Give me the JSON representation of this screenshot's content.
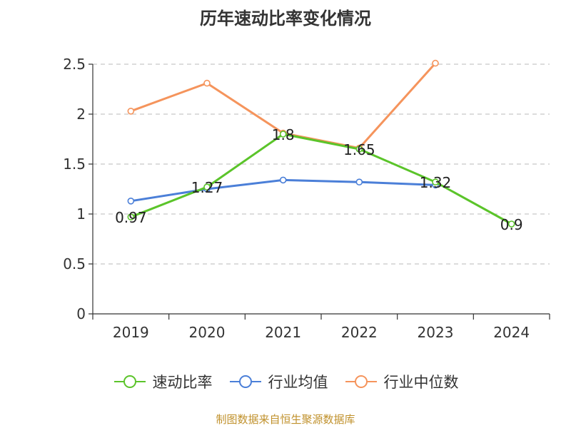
{
  "chart_data": {
    "type": "line",
    "title": "历年速动比率变化情况",
    "categories": [
      "2019",
      "2020",
      "2021",
      "2022",
      "2023",
      "2024"
    ],
    "ylim": [
      0,
      2.5
    ],
    "yticks": [
      "0",
      "0.5",
      "1",
      "1.5",
      "2",
      "2.5"
    ],
    "grid": true,
    "legend_position": "bottom",
    "series": [
      {
        "name": "速动比率",
        "color": "#5bc42a",
        "values": [
          0.97,
          1.27,
          1.8,
          1.65,
          1.32,
          0.9
        ],
        "labels": [
          "0.97",
          "1.27",
          "1.8",
          "1.65",
          "1.32",
          "0.9"
        ]
      },
      {
        "name": "行业均值",
        "color": "#4b7fd8",
        "values": [
          1.13,
          1.25,
          1.34,
          1.32,
          1.29,
          null
        ]
      },
      {
        "name": "行业中位数",
        "color": "#f5945c",
        "values": [
          2.03,
          2.31,
          1.81,
          1.66,
          2.51,
          null
        ]
      }
    ]
  },
  "source": "制图数据来自恒生聚源数据库"
}
